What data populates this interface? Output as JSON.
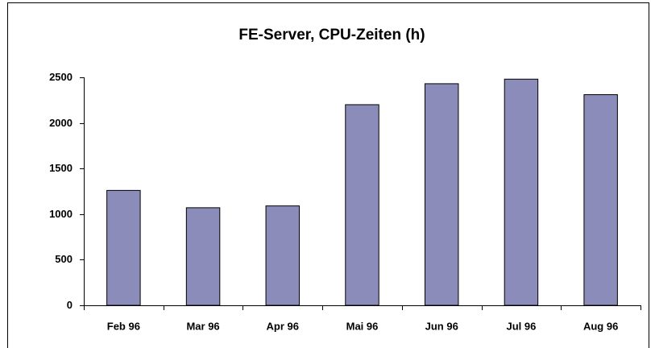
{
  "chart_data": {
    "type": "bar",
    "title": "FE-Server, CPU-Zeiten (h)",
    "categories": [
      "Feb 96",
      "Mar 96",
      "Apr 96",
      "Mai 96",
      "Jun 96",
      "Jul 96",
      "Aug 96"
    ],
    "values": [
      1260,
      1070,
      1090,
      2200,
      2430,
      2480,
      2310
    ],
    "color": "#8c8cba",
    "ylim": [
      0,
      2500
    ],
    "yticks": [
      0,
      500,
      1000,
      1500,
      2000,
      2500
    ],
    "grid": false
  }
}
